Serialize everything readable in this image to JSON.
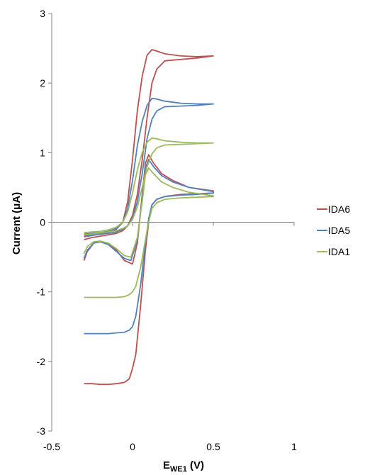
{
  "chart_data": {
    "type": "line",
    "xlabel_main": "E",
    "xlabel_sub": "WE1",
    "xlabel_unit": " (V)",
    "ylabel": "Current (μA)",
    "xlim": [
      -0.5,
      1
    ],
    "ylim": [
      -3,
      3
    ],
    "x_ticks": [
      -0.5,
      0,
      0.5,
      1
    ],
    "x_tick_labels": [
      "-0.5",
      "0",
      "0.5",
      "1"
    ],
    "y_ticks": [
      3,
      2,
      1,
      0,
      -1,
      -2,
      -3
    ],
    "y_tick_labels": [
      "3",
      "2",
      "1",
      "0",
      "-1",
      "-2",
      "-3"
    ],
    "grid": false,
    "legend_position": "right",
    "series": [
      {
        "name": "IDA6",
        "color": "#c0504d",
        "collector": {
          "x": [
            -0.3,
            -0.25,
            -0.2,
            -0.15,
            -0.1,
            -0.06,
            -0.03,
            0,
            0.03,
            0.06,
            0.09,
            0.12,
            0.15,
            0.2,
            0.3,
            0.4,
            0.5,
            0.5,
            0.4,
            0.3,
            0.2,
            0.15,
            0.12,
            0.09,
            0.06,
            0.03,
            0,
            -0.03,
            -0.06,
            -0.1,
            -0.15,
            -0.2,
            -0.25,
            -0.3
          ],
          "y": [
            -0.2,
            -0.18,
            -0.17,
            -0.15,
            -0.1,
            0.0,
            0.3,
            0.9,
            1.6,
            2.1,
            2.4,
            2.48,
            2.46,
            2.42,
            2.39,
            2.38,
            2.39,
            2.39,
            2.36,
            2.34,
            2.32,
            2.2,
            2.0,
            1.5,
            0.9,
            0.4,
            0.1,
            -0.05,
            -0.12,
            -0.16,
            -0.18,
            -0.2,
            -0.22,
            -0.25
          ]
        },
        "generator": {
          "x": [
            -0.3,
            -0.28,
            -0.24,
            -0.2,
            -0.15,
            -0.1,
            -0.05,
            0,
            0.03,
            0.06,
            0.08,
            0.1,
            0.13,
            0.18,
            0.25,
            0.35,
            0.5,
            0.5,
            0.4,
            0.3,
            0.2,
            0.15,
            0.12,
            0.1,
            0.08,
            0.05,
            0.02,
            0,
            -0.02,
            -0.05,
            -0.1,
            -0.15,
            -0.2,
            -0.25,
            -0.3
          ],
          "y": [
            -0.55,
            -0.42,
            -0.3,
            -0.28,
            -0.3,
            -0.4,
            -0.55,
            -0.6,
            -0.3,
            0.4,
            0.85,
            0.97,
            0.85,
            0.7,
            0.6,
            0.5,
            0.45,
            0.42,
            0.41,
            0.4,
            0.37,
            0.33,
            0.25,
            0.0,
            -0.4,
            -1.2,
            -1.9,
            -2.1,
            -2.25,
            -2.3,
            -2.32,
            -2.33,
            -2.33,
            -2.32,
            -2.32
          ]
        }
      },
      {
        "name": "IDA5",
        "color": "#4f81bd",
        "collector": {
          "x": [
            -0.3,
            -0.25,
            -0.2,
            -0.15,
            -0.1,
            -0.06,
            -0.03,
            0,
            0.03,
            0.06,
            0.09,
            0.12,
            0.15,
            0.2,
            0.3,
            0.4,
            0.5,
            0.5,
            0.4,
            0.3,
            0.2,
            0.15,
            0.12,
            0.09,
            0.06,
            0.03,
            0,
            -0.03,
            -0.06,
            -0.1,
            -0.15,
            -0.2,
            -0.25,
            -0.3
          ],
          "y": [
            -0.17,
            -0.16,
            -0.15,
            -0.13,
            -0.09,
            0.0,
            0.2,
            0.6,
            1.1,
            1.45,
            1.68,
            1.78,
            1.77,
            1.74,
            1.71,
            1.7,
            1.7,
            1.7,
            1.68,
            1.67,
            1.66,
            1.6,
            1.48,
            1.2,
            0.7,
            0.3,
            0.06,
            -0.05,
            -0.1,
            -0.14,
            -0.16,
            -0.17,
            -0.19,
            -0.21
          ]
        },
        "generator": {
          "x": [
            -0.3,
            -0.28,
            -0.24,
            -0.2,
            -0.15,
            -0.1,
            -0.05,
            -0.01,
            0.03,
            0.06,
            0.08,
            0.1,
            0.13,
            0.18,
            0.25,
            0.35,
            0.5,
            0.5,
            0.4,
            0.3,
            0.2,
            0.15,
            0.12,
            0.1,
            0.08,
            0.05,
            0.02,
            0,
            -0.02,
            -0.05,
            -0.1,
            -0.15,
            -0.2,
            -0.25,
            -0.3
          ],
          "y": [
            -0.52,
            -0.4,
            -0.3,
            -0.28,
            -0.32,
            -0.42,
            -0.52,
            -0.55,
            -0.25,
            0.35,
            0.78,
            0.9,
            0.8,
            0.67,
            0.58,
            0.5,
            0.44,
            0.42,
            0.4,
            0.39,
            0.37,
            0.33,
            0.25,
            0.05,
            -0.3,
            -0.9,
            -1.35,
            -1.5,
            -1.55,
            -1.58,
            -1.59,
            -1.6,
            -1.6,
            -1.6,
            -1.6
          ]
        }
      },
      {
        "name": "IDA1",
        "color": "#9bbb59",
        "collector": {
          "x": [
            -0.3,
            -0.25,
            -0.2,
            -0.15,
            -0.1,
            -0.06,
            -0.03,
            0,
            0.03,
            0.06,
            0.09,
            0.12,
            0.15,
            0.2,
            0.3,
            0.4,
            0.5,
            0.5,
            0.4,
            0.3,
            0.2,
            0.15,
            0.12,
            0.09,
            0.06,
            0.03,
            0,
            -0.03,
            -0.06,
            -0.1,
            -0.15,
            -0.2,
            -0.25,
            -0.3
          ],
          "y": [
            -0.15,
            -0.14,
            -0.13,
            -0.11,
            -0.07,
            0.0,
            0.15,
            0.42,
            0.75,
            1.0,
            1.15,
            1.21,
            1.2,
            1.17,
            1.15,
            1.14,
            1.14,
            1.14,
            1.13,
            1.12,
            1.11,
            1.07,
            0.98,
            0.8,
            0.5,
            0.22,
            0.04,
            -0.05,
            -0.09,
            -0.12,
            -0.14,
            -0.15,
            -0.17,
            -0.18
          ]
        },
        "generator": {
          "x": [
            -0.3,
            -0.28,
            -0.24,
            -0.2,
            -0.15,
            -0.1,
            -0.05,
            -0.01,
            0.03,
            0.06,
            0.08,
            0.1,
            0.13,
            0.18,
            0.25,
            0.35,
            0.5,
            0.5,
            0.4,
            0.3,
            0.2,
            0.15,
            0.12,
            0.1,
            0.08,
            0.05,
            0.02,
            0,
            -0.02,
            -0.05,
            -0.1,
            -0.15,
            -0.2,
            -0.25,
            -0.3
          ],
          "y": [
            -0.45,
            -0.35,
            -0.28,
            -0.27,
            -0.3,
            -0.38,
            -0.48,
            -0.5,
            -0.22,
            0.3,
            0.68,
            0.78,
            0.7,
            0.58,
            0.5,
            0.43,
            0.38,
            0.37,
            0.36,
            0.35,
            0.33,
            0.28,
            0.2,
            0.0,
            -0.25,
            -0.65,
            -0.92,
            -1.0,
            -1.04,
            -1.07,
            -1.08,
            -1.08,
            -1.08,
            -1.08,
            -1.08
          ]
        }
      }
    ]
  }
}
